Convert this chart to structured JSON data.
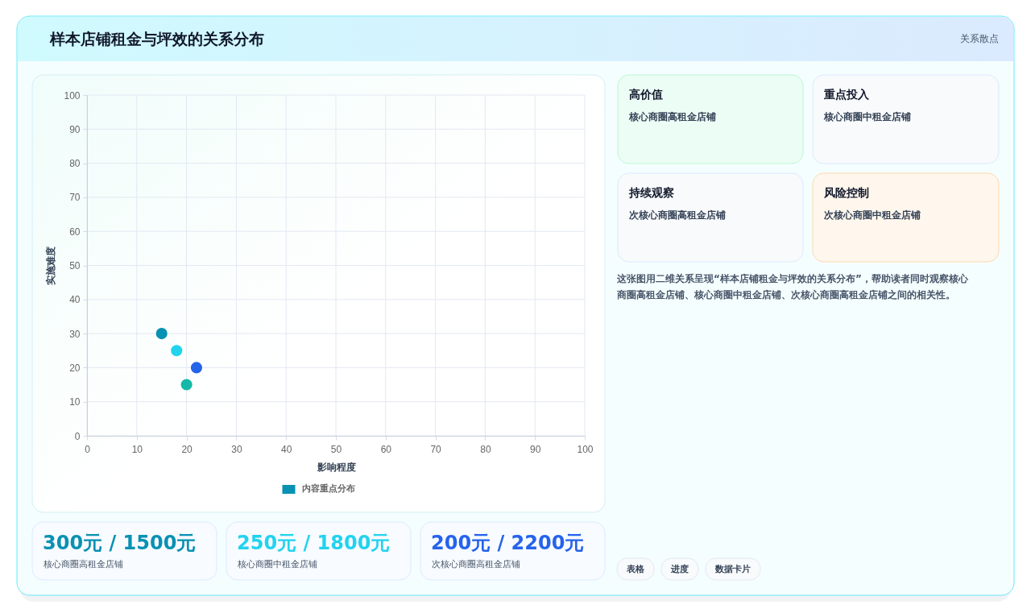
{
  "chart_data": [
    {
      "type": "scatter",
      "title": "样本店铺租金与坪效的关系分布",
      "annotations": [
        "关系散点"
      ],
      "xlabel": "影响程度",
      "ylabel": "实施难度",
      "x": [
        15,
        18,
        22,
        20
      ],
      "xlim": [
        0,
        100
      ],
      "ylim": [
        0,
        100
      ],
      "xticks": [
        0,
        10,
        20,
        30,
        40,
        50,
        60,
        70,
        80,
        90,
        100
      ],
      "yticks": [
        0,
        10,
        20,
        30,
        40,
        50,
        60,
        70,
        80,
        90,
        100
      ],
      "grid": true,
      "legend": "bottom",
      "marker": "circle",
      "series": [
        {
          "name": "内容重点分布",
          "color": "#0891b2",
          "colors": [
            "#0891b2",
            "#22d3ee",
            "#2563eb",
            "#14b8a6"
          ],
          "values": [
            30,
            25,
            20,
            15
          ]
        }
      ]
    },
    {
      "type": "other",
      "title": "高价值",
      "subtitle": "核心商圈高租金店铺"
    },
    {
      "type": "other",
      "title": "重点投入",
      "subtitle": "核心商圈中租金店铺"
    },
    {
      "type": "other",
      "title": "持续观察",
      "subtitle": "次核心商圈高租金店铺"
    },
    {
      "type": "other",
      "title": "风险控制",
      "subtitle": "次核心商圈中租金店铺"
    },
    {
      "type": "other",
      "annotations": [
        "这张图用二维关系呈现“样本店铺租金与坪效的关系分布”，帮助读者同时观察核心商圈高租金店铺、核心商圈中租金店铺、次核心商圈高租金店铺之间的相关性。"
      ]
    },
    {
      "type": "other",
      "title": "300元 / 1500元",
      "subtitle": "核心商圈高租金店铺",
      "color": "#0891b2"
    },
    {
      "type": "other",
      "title": "250元 / 1800元",
      "subtitle": "核心商圈中租金店铺",
      "color": "#22d3ee"
    },
    {
      "type": "other",
      "title": "200元 / 2200元",
      "subtitle": "次核心商圈高租金店铺",
      "color": "#2563eb"
    },
    {
      "type": "other",
      "annotations": [
        "表格",
        "进度",
        "数据卡片"
      ]
    }
  ]
}
